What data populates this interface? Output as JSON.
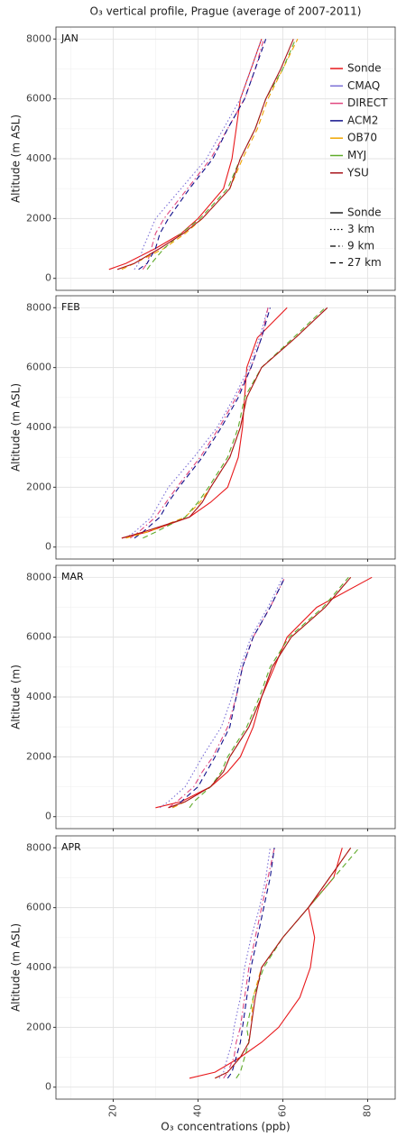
{
  "title": "O₃ vertical profile, Prague (average of 2007-2011)",
  "xlabel": "O₃ concentrations (ppb)",
  "color_legend": [
    {
      "name": "Sonde",
      "color": "#e8191c"
    },
    {
      "name": "CMAQ",
      "color": "#7b6fd6"
    },
    {
      "name": "DIRECT",
      "color": "#e0467e"
    },
    {
      "name": "ACM2",
      "color": "#10108a"
    },
    {
      "name": "OB70",
      "color": "#f0a500"
    },
    {
      "name": "MYJ",
      "color": "#5faa2a"
    },
    {
      "name": "YSU",
      "color": "#a8141c"
    }
  ],
  "linetype_legend": [
    {
      "name": "Sonde",
      "dash": "none"
    },
    {
      "name": "3 km",
      "dash": "1.5,2.5"
    },
    {
      "name": "9 km",
      "dash": "6,3,1.5,3"
    },
    {
      "name": "27 km",
      "dash": "6,4"
    }
  ],
  "chart_data": [
    {
      "type": "line",
      "panel": "JAN",
      "ylabel": "Altitude (m ASL)",
      "xlim": [
        6.5,
        86.5
      ],
      "ylim": [
        -400,
        8400
      ],
      "xticks": [
        20,
        40,
        60,
        80
      ],
      "yticks": [
        0,
        2000,
        4000,
        6000,
        8000
      ],
      "xminor": [
        10,
        30,
        50,
        70
      ],
      "yminor": [
        1000,
        3000,
        5000,
        7000
      ],
      "grid": true,
      "altitudes": [
        300,
        500,
        1000,
        1500,
        2000,
        3000,
        4000,
        5000,
        6000,
        7000,
        8000
      ],
      "series": [
        {
          "name": "Sonde",
          "color": "#e8191c",
          "dash": "none",
          "values": [
            19,
            23,
            30,
            36,
            40,
            46,
            48,
            49,
            50,
            52.5,
            55
          ]
        },
        {
          "name": "CMAQ",
          "color": "#7b6fd6",
          "dash": "1.5,2.5",
          "values": [
            25,
            26,
            27,
            28.5,
            30,
            36,
            42,
            46,
            50,
            52.5,
            55
          ]
        },
        {
          "name": "DIRECT",
          "color": "#e0467e",
          "dash": "6,3,1.5,3",
          "values": [
            27,
            28,
            29,
            30,
            32,
            37.5,
            43,
            47,
            51,
            53.5,
            55.5
          ]
        },
        {
          "name": "ACM2",
          "color": "#10108a",
          "dash": "6,4",
          "values": [
            26,
            28,
            30,
            31,
            33,
            38,
            43.5,
            47,
            51,
            53.5,
            56
          ]
        },
        {
          "name": "OB70",
          "color": "#f0a500",
          "dash": "6,4",
          "values": [
            22,
            25,
            32,
            37,
            41,
            47.5,
            50.5,
            54,
            56.5,
            60,
            63.5
          ]
        },
        {
          "name": "MYJ",
          "color": "#5faa2a",
          "dash": "6,4",
          "values": [
            28,
            29,
            32,
            36,
            40.5,
            47,
            50,
            53.5,
            56,
            60,
            63
          ]
        },
        {
          "name": "YSU",
          "color": "#a8141c",
          "dash": "none",
          "values": [
            21,
            25,
            31,
            36.5,
            41,
            47.5,
            50,
            53.5,
            56,
            59.5,
            62.5
          ]
        }
      ]
    },
    {
      "type": "line",
      "panel": "FEB",
      "ylabel": "Altitude (m ASL)",
      "xlim": [
        6.5,
        86.5
      ],
      "ylim": [
        -400,
        8400
      ],
      "xticks": [
        20,
        40,
        60,
        80
      ],
      "yticks": [
        0,
        2000,
        4000,
        6000,
        8000
      ],
      "xminor": [
        10,
        30,
        50,
        70
      ],
      "yminor": [
        1000,
        3000,
        5000,
        7000
      ],
      "grid": true,
      "altitudes": [
        300,
        500,
        1000,
        1500,
        2000,
        3000,
        4000,
        5000,
        6000,
        7000,
        8000
      ],
      "series": [
        {
          "name": "Sonde",
          "color": "#e8191c",
          "dash": "none",
          "values": [
            22,
            28,
            38,
            43,
            47,
            49.5,
            50.5,
            51,
            51.5,
            54,
            61
          ]
        },
        {
          "name": "CMAQ",
          "color": "#7b6fd6",
          "dash": "1.5,2.5",
          "values": [
            23,
            25,
            29,
            31,
            33,
            39,
            44.5,
            48.5,
            52,
            54.5,
            56.5
          ]
        },
        {
          "name": "DIRECT",
          "color": "#e0467e",
          "dash": "6,3,1.5,3",
          "values": [
            24,
            26,
            30,
            32.5,
            35,
            40.5,
            45,
            49,
            52.5,
            55,
            56.5
          ]
        },
        {
          "name": "ACM2",
          "color": "#10108a",
          "dash": "6,4",
          "values": [
            25,
            27,
            31,
            33,
            35.5,
            41,
            45.5,
            49.5,
            52.5,
            55,
            57
          ]
        },
        {
          "name": "OB70",
          "color": "#f0a500",
          "dash": "6,4",
          "values": [
            23,
            28,
            37,
            40.5,
            43,
            47.5,
            50,
            51.5,
            55,
            63,
            70.5
          ]
        },
        {
          "name": "MYJ",
          "color": "#5faa2a",
          "dash": "6,4",
          "values": [
            27,
            30,
            37,
            40,
            42.5,
            47,
            49.5,
            51,
            55,
            62.5,
            70
          ]
        },
        {
          "name": "YSU",
          "color": "#a8141c",
          "dash": "none",
          "values": [
            22,
            27,
            38,
            41,
            43,
            47.5,
            50,
            51.5,
            55,
            63,
            70.5
          ]
        }
      ]
    },
    {
      "type": "line",
      "panel": "MAR",
      "ylabel": "Altitude (m)",
      "xlim": [
        6.5,
        86.5
      ],
      "ylim": [
        -400,
        8400
      ],
      "xticks": [
        20,
        40,
        60,
        80
      ],
      "yticks": [
        0,
        2000,
        4000,
        6000,
        8000
      ],
      "xminor": [
        10,
        30,
        50,
        70
      ],
      "yminor": [
        1000,
        3000,
        5000,
        7000
      ],
      "grid": true,
      "altitudes": [
        300,
        500,
        1000,
        1500,
        2000,
        3000,
        4000,
        5000,
        6000,
        7000,
        8000
      ],
      "series": [
        {
          "name": "Sonde",
          "color": "#e8191c",
          "dash": "none",
          "values": [
            30,
            36,
            43,
            47,
            50,
            53,
            55,
            58,
            61,
            68,
            81
          ]
        },
        {
          "name": "CMAQ",
          "color": "#7b6fd6",
          "dash": "1.5,2.5",
          "values": [
            31,
            33,
            37,
            39,
            41,
            45.5,
            48,
            50,
            52.5,
            56.5,
            60
          ]
        },
        {
          "name": "DIRECT",
          "color": "#e0467e",
          "dash": "6,3,1.5,3",
          "values": [
            33,
            35,
            39,
            41,
            43.5,
            47,
            49,
            50.5,
            53,
            57,
            60.5
          ]
        },
        {
          "name": "ACM2",
          "color": "#10108a",
          "dash": "6,4",
          "values": [
            34,
            36,
            40,
            42,
            44,
            47.5,
            49,
            50.5,
            53,
            57,
            60.5
          ]
        },
        {
          "name": "OB70",
          "color": "#f0a500",
          "dash": "6,4",
          "values": [
            34,
            37,
            43,
            46,
            47.5,
            52,
            55,
            57.5,
            62,
            70,
            76
          ]
        },
        {
          "name": "MYJ",
          "color": "#5faa2a",
          "dash": "6,4",
          "values": [
            38,
            39,
            43,
            45.5,
            47,
            51.5,
            54.5,
            57,
            61.5,
            69.5,
            75.5
          ]
        },
        {
          "name": "YSU",
          "color": "#a8141c",
          "dash": "none",
          "values": [
            33,
            37,
            43,
            46,
            47.5,
            52,
            55,
            57.5,
            62,
            70,
            76
          ]
        }
      ]
    },
    {
      "type": "line",
      "panel": "APR",
      "ylabel": "Altitude (m ASL)",
      "xlim": [
        6.5,
        86.5
      ],
      "ylim": [
        -400,
        8400
      ],
      "xticks": [
        20,
        40,
        60,
        80
      ],
      "yticks": [
        0,
        2000,
        4000,
        6000,
        8000
      ],
      "xminor": [
        10,
        30,
        50,
        70
      ],
      "yminor": [
        1000,
        3000,
        5000,
        7000
      ],
      "grid": true,
      "altitudes": [
        300,
        500,
        1000,
        1500,
        2000,
        3000,
        4000,
        5000,
        6000,
        7000,
        8000
      ],
      "series": [
        {
          "name": "Sonde",
          "color": "#e8191c",
          "dash": "none",
          "values": [
            38,
            44,
            50,
            55,
            59,
            64,
            66.5,
            67.5,
            66,
            72,
            74
          ]
        },
        {
          "name": "CMAQ",
          "color": "#7b6fd6",
          "dash": "1.5,2.5",
          "values": [
            45,
            46,
            47,
            48,
            48.5,
            50,
            51,
            52.5,
            54.5,
            56,
            57
          ]
        },
        {
          "name": "DIRECT",
          "color": "#e0467e",
          "dash": "6,3,1.5,3",
          "values": [
            46,
            47,
            48.5,
            49,
            50,
            51,
            52,
            53.5,
            55,
            56.5,
            58
          ]
        },
        {
          "name": "ACM2",
          "color": "#10108a",
          "dash": "6,4",
          "values": [
            47,
            48,
            49,
            50,
            50.5,
            51.5,
            52.5,
            54,
            55.5,
            57,
            58
          ]
        },
        {
          "name": "OB70",
          "color": "#f0a500",
          "dash": "6,4",
          "values": [
            44,
            47,
            50,
            52,
            52.5,
            53,
            55,
            60,
            66,
            71,
            76
          ]
        },
        {
          "name": "MYJ",
          "color": "#5faa2a",
          "dash": "6,4",
          "values": [
            49,
            50,
            51,
            52,
            51.5,
            53,
            55.5,
            60,
            66,
            72,
            78
          ]
        },
        {
          "name": "YSU",
          "color": "#a8141c",
          "dash": "none",
          "values": [
            44,
            47,
            50,
            52,
            52.5,
            53.5,
            55,
            60,
            66,
            71,
            76
          ]
        }
      ]
    }
  ]
}
